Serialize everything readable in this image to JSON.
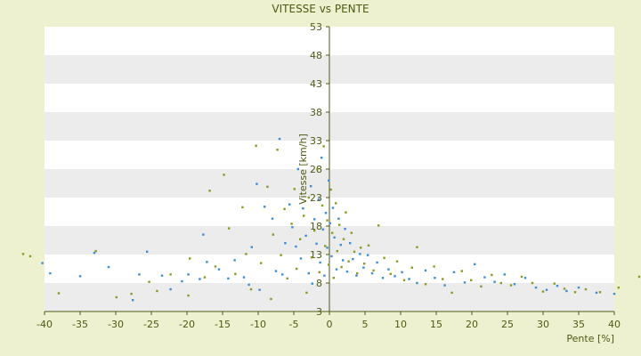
{
  "chart_data": {
    "type": "scatter",
    "title": "VITESSE vs PENTE",
    "xlabel": "Pente [%]",
    "ylabel": "Vitesse [km/h]",
    "xlim": [
      -40,
      40
    ],
    "ylim": [
      3,
      53
    ],
    "x_ticks": [
      -40,
      -35,
      -30,
      -25,
      -20,
      -15,
      -10,
      -5,
      0,
      5,
      10,
      15,
      20,
      25,
      30,
      35,
      40
    ],
    "y_ticks": [
      3,
      8,
      13,
      18,
      23,
      28,
      33,
      38,
      43,
      48,
      53
    ],
    "grid": true,
    "legend": "none",
    "colors": {
      "background": "#eef1cf",
      "plot_band_light": "#ffffff",
      "plot_band_dark": "#ececec",
      "axis": "#4d5a14",
      "text": "#4d5a14"
    },
    "series": [
      {
        "color": "#3a8ed6",
        "points": [
          [
            -40.3,
            11.5
          ],
          [
            -39.2,
            9.7
          ],
          [
            -35.0,
            9.2
          ],
          [
            -33.0,
            13.3
          ],
          [
            -31.0,
            10.8
          ],
          [
            -27.6,
            5.0
          ],
          [
            -26.7,
            9.5
          ],
          [
            -25.6,
            13.5
          ],
          [
            -23.5,
            9.3
          ],
          [
            -22.3,
            6.9
          ],
          [
            -20.7,
            8.3
          ],
          [
            -19.8,
            9.5
          ],
          [
            -18.2,
            8.7
          ],
          [
            -17.7,
            16.5
          ],
          [
            -17.2,
            11.7
          ],
          [
            -15.5,
            10.4
          ],
          [
            -14.2,
            8.8
          ],
          [
            -13.3,
            12.0
          ],
          [
            -12.0,
            9.0
          ],
          [
            -11.3,
            7.7
          ],
          [
            -10.9,
            14.3
          ],
          [
            -10.2,
            25.4
          ],
          [
            -9.8,
            6.8
          ],
          [
            -9.1,
            21.4
          ],
          [
            -8.0,
            19.3
          ],
          [
            -7.5,
            10.1
          ],
          [
            -7.0,
            33.3
          ],
          [
            -6.6,
            9.5
          ],
          [
            -6.2,
            15.0
          ],
          [
            -5.6,
            21.8
          ],
          [
            -5.2,
            17.8
          ],
          [
            -4.7,
            14.4
          ],
          [
            -4.4,
            28.0
          ],
          [
            -4.0,
            12.3
          ],
          [
            -3.7,
            21.1
          ],
          [
            -3.3,
            16.3
          ],
          [
            -2.9,
            9.7
          ],
          [
            -2.6,
            25.0
          ],
          [
            -2.4,
            7.9
          ],
          [
            -2.1,
            19.2
          ],
          [
            -1.8,
            14.9
          ],
          [
            -1.5,
            22.7
          ],
          [
            -1.3,
            11.6
          ],
          [
            -1.1,
            30.0
          ],
          [
            -0.9,
            17.4
          ],
          [
            -0.7,
            9.3
          ],
          [
            -0.5,
            20.3
          ],
          [
            -0.3,
            14.2
          ],
          [
            -0.1,
            26.0
          ],
          [
            0.1,
            18.5
          ],
          [
            0.3,
            12.7
          ],
          [
            0.5,
            21.2
          ],
          [
            0.7,
            16.0
          ],
          [
            1.0,
            10.4
          ],
          [
            1.3,
            19.3
          ],
          [
            1.6,
            14.7
          ],
          [
            1.9,
            12.0
          ],
          [
            2.2,
            17.5
          ],
          [
            2.5,
            10.0
          ],
          [
            2.9,
            15.0
          ],
          [
            3.3,
            12.2
          ],
          [
            3.8,
            9.3
          ],
          [
            4.3,
            13.1
          ],
          [
            4.8,
            10.7
          ],
          [
            5.4,
            12.9
          ],
          [
            6.0,
            9.7
          ],
          [
            6.7,
            11.6
          ],
          [
            7.5,
            8.9
          ],
          [
            8.3,
            10.4
          ],
          [
            9.2,
            9.2
          ],
          [
            10.2,
            9.9
          ],
          [
            11.2,
            8.7
          ],
          [
            12.3,
            8.0
          ],
          [
            13.5,
            10.2
          ],
          [
            14.8,
            8.9
          ],
          [
            16.2,
            7.6
          ],
          [
            17.5,
            9.9
          ],
          [
            19.0,
            8.1
          ],
          [
            20.4,
            11.3
          ],
          [
            21.8,
            9.0
          ],
          [
            23.2,
            8.2
          ],
          [
            24.6,
            9.5
          ],
          [
            26.0,
            7.8
          ],
          [
            27.5,
            8.9
          ],
          [
            29.0,
            7.2
          ],
          [
            30.5,
            6.8
          ],
          [
            32.0,
            7.5
          ],
          [
            33.3,
            6.6
          ],
          [
            35.0,
            7.2
          ],
          [
            37.5,
            6.3
          ],
          [
            40.0,
            6.1
          ]
        ]
      },
      {
        "color": "#8a9a1e",
        "points": [
          [
            -43.0,
            13.1
          ],
          [
            -42.0,
            12.7
          ],
          [
            -38.0,
            6.2
          ],
          [
            -32.8,
            13.6
          ],
          [
            -29.9,
            5.5
          ],
          [
            -27.8,
            6.1
          ],
          [
            -25.3,
            8.2
          ],
          [
            -24.2,
            6.6
          ],
          [
            -22.3,
            9.5
          ],
          [
            -19.8,
            5.8
          ],
          [
            -19.6,
            12.3
          ],
          [
            -17.5,
            9.0
          ],
          [
            -16.8,
            24.2
          ],
          [
            -16.0,
            10.9
          ],
          [
            -14.8,
            27.0
          ],
          [
            -14.1,
            17.6
          ],
          [
            -13.2,
            9.6
          ],
          [
            -12.2,
            21.3
          ],
          [
            -11.7,
            13.1
          ],
          [
            -11.0,
            6.9
          ],
          [
            -10.3,
            32.1
          ],
          [
            -9.6,
            11.5
          ],
          [
            -8.7,
            24.9
          ],
          [
            -8.2,
            5.2
          ],
          [
            -7.9,
            16.5
          ],
          [
            -7.3,
            31.4
          ],
          [
            -6.8,
            12.9
          ],
          [
            -6.3,
            21.0
          ],
          [
            -5.9,
            8.8
          ],
          [
            -5.3,
            18.4
          ],
          [
            -4.9,
            24.5
          ],
          [
            -4.6,
            10.5
          ],
          [
            -4.1,
            15.7
          ],
          [
            -3.6,
            19.8
          ],
          [
            -3.2,
            6.3
          ],
          [
            -2.9,
            23.0
          ],
          [
            -2.5,
            12.5
          ],
          [
            -2.1,
            17.2
          ],
          [
            -1.7,
            28.0
          ],
          [
            -1.4,
            9.9
          ],
          [
            -1.0,
            21.6
          ],
          [
            -0.8,
            32.0
          ],
          [
            -0.6,
            14.5
          ],
          [
            -0.3,
            19.0
          ],
          [
            -0.1,
            11.2
          ],
          [
            0.2,
            24.4
          ],
          [
            0.4,
            16.8
          ],
          [
            0.6,
            8.9
          ],
          [
            0.9,
            22.0
          ],
          [
            1.1,
            13.6
          ],
          [
            1.4,
            18.2
          ],
          [
            1.7,
            10.8
          ],
          [
            2.0,
            15.7
          ],
          [
            2.3,
            20.4
          ],
          [
            2.7,
            11.8
          ],
          [
            3.1,
            16.8
          ],
          [
            3.5,
            13.5
          ],
          [
            3.9,
            9.7
          ],
          [
            4.4,
            14.2
          ],
          [
            4.9,
            11.4
          ],
          [
            5.5,
            14.6
          ],
          [
            6.2,
            10.2
          ],
          [
            6.9,
            18.1
          ],
          [
            7.7,
            12.4
          ],
          [
            8.6,
            9.6
          ],
          [
            9.5,
            11.8
          ],
          [
            10.5,
            8.5
          ],
          [
            11.6,
            10.7
          ],
          [
            12.3,
            14.3
          ],
          [
            13.5,
            7.8
          ],
          [
            14.7,
            10.9
          ],
          [
            15.9,
            8.7
          ],
          [
            17.2,
            6.3
          ],
          [
            18.6,
            10.1
          ],
          [
            19.9,
            8.5
          ],
          [
            21.3,
            7.4
          ],
          [
            22.8,
            9.4
          ],
          [
            24.1,
            8.0
          ],
          [
            25.5,
            7.6
          ],
          [
            27.0,
            9.1
          ],
          [
            28.5,
            8.0
          ],
          [
            30.0,
            6.5
          ],
          [
            31.6,
            7.9
          ],
          [
            33.0,
            7.0
          ],
          [
            34.5,
            6.4
          ],
          [
            36.0,
            6.9
          ],
          [
            38.0,
            6.4
          ],
          [
            40.6,
            7.2
          ],
          [
            43.5,
            9.1
          ]
        ]
      }
    ]
  }
}
